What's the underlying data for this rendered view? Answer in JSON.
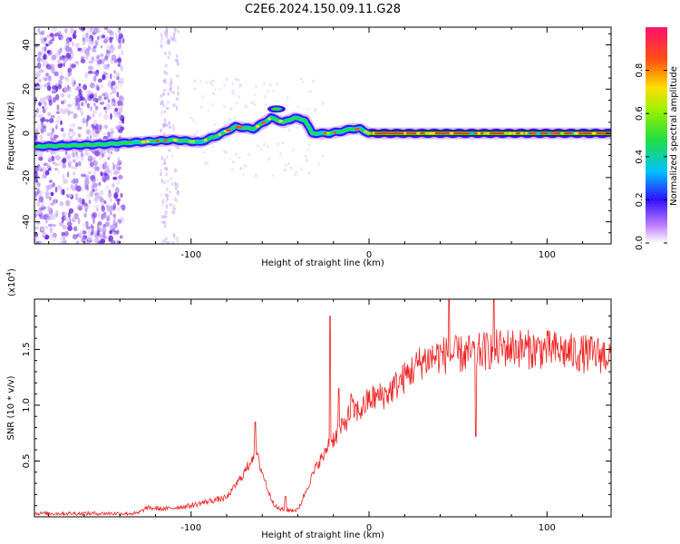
{
  "title": "C2E6.2024.150.09.11.G28",
  "colors": {
    "snr_line": "#ee2222",
    "axis": "#000000"
  },
  "colorbar": {
    "label": "Normalized spectral amplitude",
    "ticks": [
      "0.0",
      "0.2",
      "0.4",
      "0.6",
      "0.8"
    ],
    "tick_values": [
      0.0,
      0.2,
      0.4,
      0.6,
      0.8
    ],
    "range": [
      0,
      1
    ]
  },
  "chart_data": [
    {
      "type": "heatmap",
      "name": "spectrogram",
      "xlabel": "Height of straight line (km)",
      "ylabel": "Frequency (Hz)",
      "xlim": [
        -188,
        136
      ],
      "ylim": [
        -50,
        48
      ],
      "xticks": [
        -100,
        0,
        100
      ],
      "xtick_labels": [
        "-100",
        "0",
        "100"
      ],
      "yticks": [
        -40,
        -20,
        0,
        20,
        40
      ],
      "ytick_labels": [
        "-40",
        "-20",
        "0",
        "20",
        "40"
      ],
      "ridge": {
        "x": [
          -188,
          -150,
          -130,
          -110,
          -95,
          -85,
          -75,
          -65,
          -55,
          -48,
          -42,
          -36,
          -32,
          -28,
          -22,
          -15,
          -10,
          -5,
          0,
          30,
          60,
          100,
          136
        ],
        "freq": [
          -6,
          -5,
          -4,
          -3,
          -4,
          -1,
          3,
          2,
          7,
          5,
          7,
          6,
          0,
          0,
          0,
          1,
          2,
          2,
          0,
          0,
          0,
          0,
          0
        ]
      }
    },
    {
      "type": "line",
      "name": "snr",
      "xlabel": "Height of straight line (km)",
      "ylabel": "SNR (10 * v/v)",
      "y_multiplier_label": "(x10",
      "y_multiplier_exp": "4",
      "xlim": [
        -188,
        136
      ],
      "ylim": [
        0,
        1.95
      ],
      "xticks": [
        -100,
        0,
        100
      ],
      "xtick_labels": [
        "-100",
        "0",
        "100"
      ],
      "yticks": [
        0.5,
        1.0,
        1.5
      ],
      "ytick_labels": [
        "0.5",
        "1.0",
        "1.5"
      ],
      "envelope": {
        "x": [
          -188,
          -130,
          -125,
          -115,
          -100,
          -90,
          -80,
          -72,
          -68,
          -64,
          -60,
          -56,
          -52,
          -48,
          -40,
          -35,
          -31,
          -28,
          -25,
          -23,
          -20,
          -15,
          -10,
          -5,
          0,
          10,
          20,
          30,
          40,
          50,
          60,
          70,
          80,
          90,
          100,
          110,
          120,
          136
        ],
        "y": [
          0.03,
          0.03,
          0.08,
          0.07,
          0.1,
          0.14,
          0.17,
          0.35,
          0.45,
          0.6,
          0.4,
          0.2,
          0.08,
          0.06,
          0.06,
          0.25,
          0.4,
          0.5,
          0.55,
          0.65,
          0.7,
          0.8,
          0.95,
          0.95,
          1.05,
          1.1,
          1.25,
          1.4,
          1.45,
          1.45,
          1.47,
          1.5,
          1.52,
          1.5,
          1.5,
          1.48,
          1.46,
          1.45
        ]
      },
      "spikes": [
        {
          "x": -64,
          "y": 0.85
        },
        {
          "x": -47,
          "y": 0.18
        },
        {
          "x": -22,
          "y": 1.8
        },
        {
          "x": -17,
          "y": 1.15
        },
        {
          "x": -10,
          "y": 1.1
        },
        {
          "x": 45,
          "y": 1.95
        },
        {
          "x": 70,
          "y": 1.95
        },
        {
          "x": 60,
          "y": 0.72
        }
      ]
    }
  ]
}
